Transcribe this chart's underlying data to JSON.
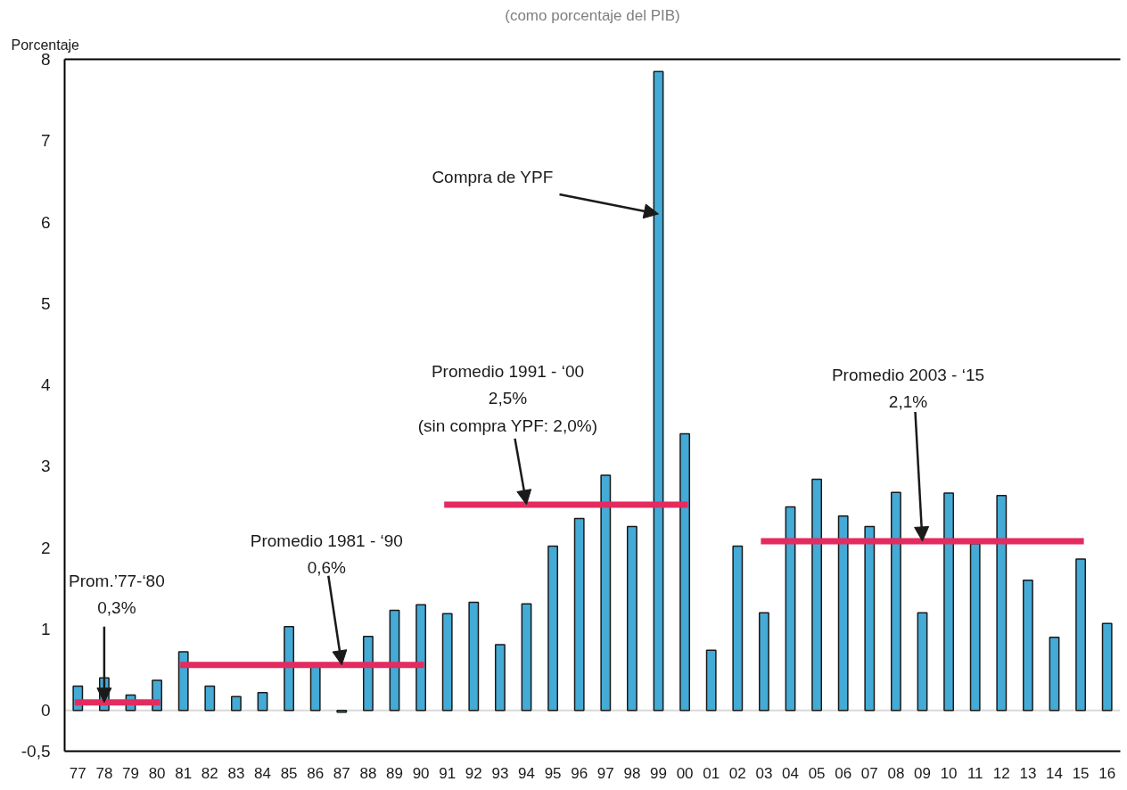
{
  "chart_data": {
    "type": "bar",
    "subtitle": "(como porcentaje del PIB)",
    "ylabel": "Porcentaje",
    "categories": [
      "77",
      "78",
      "79",
      "80",
      "81",
      "82",
      "83",
      "84",
      "85",
      "86",
      "87",
      "88",
      "89",
      "90",
      "91",
      "92",
      "93",
      "94",
      "95",
      "96",
      "97",
      "98",
      "99",
      "00",
      "01",
      "02",
      "03",
      "04",
      "05",
      "06",
      "07",
      "08",
      "09",
      "10",
      "11",
      "12",
      "13",
      "14",
      "15",
      "16"
    ],
    "series": [
      {
        "color": "#44aad6",
        "values": [
          0.3,
          0.4,
          0.19,
          0.37,
          0.72,
          0.3,
          0.17,
          0.22,
          1.03,
          0.55,
          -0.02,
          0.91,
          1.23,
          1.3,
          1.19,
          1.33,
          0.81,
          1.31,
          2.02,
          2.36,
          2.89,
          2.26,
          7.85,
          3.4,
          0.74,
          2.02,
          1.2,
          2.5,
          2.84,
          2.39,
          2.26,
          2.68,
          1.2,
          2.67,
          2.05,
          2.64,
          1.6,
          0.9,
          1.86,
          1.07
        ]
      },
      {
        "type": "line",
        "color": "#e32b60",
        "x": [
          "77",
          "80"
        ],
        "values": [
          0.1,
          0.1
        ]
      },
      {
        "type": "line",
        "color": "#e32b60",
        "x": [
          "81",
          "90"
        ],
        "values": [
          0.56,
          0.56
        ]
      },
      {
        "type": "line",
        "color": "#e32b60",
        "x": [
          "91",
          "00"
        ],
        "values": [
          2.53,
          2.53
        ]
      },
      {
        "type": "line",
        "color": "#e32b60",
        "x": [
          "03",
          "15"
        ],
        "values": [
          2.08,
          2.08
        ]
      }
    ],
    "ylim": [
      -0.5,
      8
    ],
    "yticks": [
      {
        "value": -0.5,
        "label": "-0,5"
      },
      0,
      1,
      2,
      3,
      4,
      5,
      6,
      7,
      8
    ],
    "ref_lines": [
      {
        "axis": "y",
        "value": 0,
        "color": "#d9d9d9"
      }
    ],
    "annotations": [
      {
        "text": "Prom.’77-‘80\n0,3%",
        "x": "78",
        "y": 0.1
      },
      {
        "text": "Promedio 1981 - ‘90\n0,6%",
        "x": "87",
        "y": 0.56
      },
      {
        "text": "Promedio 1991 - ‘00\n2,5%\n(sin compra YPF: 2,0%)",
        "x": "94",
        "y": 2.53
      },
      {
        "text": "Compra de YPF",
        "x": "99",
        "y": 6.1
      },
      {
        "text": "Promedio 2003 - ‘15\n2,1%",
        "x": "09",
        "y": 2.08
      }
    ]
  }
}
